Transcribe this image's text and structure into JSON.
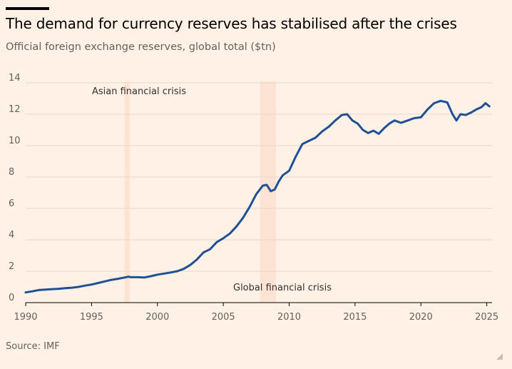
{
  "title": "The demand for currency reserves has stabilised after the crises",
  "subtitle": "Official foreign exchange reserves, global total ($tn)",
  "source": "Source: IMF",
  "colors": {
    "background": "#fff1e5",
    "line": "#1f5096",
    "shade": "#fde3d3",
    "grid": "#e4d8cc"
  },
  "chart_data": {
    "type": "line",
    "title": "The demand for currency reserves has stabilised after the crises",
    "ylabel": "Official foreign exchange reserves, global total ($tn)",
    "xlim": [
      1990,
      2025.4
    ],
    "ylim": [
      0,
      14
    ],
    "x_ticks": [
      1990,
      1995,
      2000,
      2005,
      2010,
      2015,
      2020,
      2025
    ],
    "y_ticks": [
      0,
      2,
      4,
      6,
      8,
      10,
      12,
      14
    ],
    "grid": "horizontal",
    "shaded_periods": [
      {
        "start": 1997.5,
        "end": 1997.9,
        "label": "Asian financial crisis"
      },
      {
        "start": 2007.8,
        "end": 2009.0,
        "label": "Global financial crisis"
      }
    ],
    "series": [
      {
        "x": [
          1990.0,
          1990.5,
          1991.0,
          1991.5,
          1992.0,
          1992.5,
          1993.0,
          1993.5,
          1994.0,
          1994.5,
          1995.0,
          1995.5,
          1996.0,
          1996.5,
          1997.0,
          1997.5,
          1997.8,
          1998.0,
          1998.5,
          1999.0,
          1999.5,
          2000.0,
          2000.5,
          2001.0,
          2001.5,
          2002.0,
          2002.5,
          2003.0,
          2003.5,
          2004.0,
          2004.5,
          2005.0,
          2005.5,
          2006.0,
          2006.5,
          2007.0,
          2007.5,
          2008.0,
          2008.3,
          2008.6,
          2008.9,
          2009.2,
          2009.5,
          2010.0,
          2010.5,
          2011.0,
          2011.5,
          2012.0,
          2012.5,
          2013.0,
          2013.5,
          2014.0,
          2014.4,
          2014.8,
          2015.2,
          2015.6,
          2016.0,
          2016.4,
          2016.8,
          2017.2,
          2017.6,
          2018.0,
          2018.5,
          2019.0,
          2019.5,
          2020.0,
          2020.5,
          2021.0,
          2021.5,
          2022.0,
          2022.4,
          2022.7,
          2023.0,
          2023.4,
          2023.8,
          2024.2,
          2024.6,
          2024.9,
          2025.2
        ],
        "values": [
          0.65,
          0.72,
          0.8,
          0.83,
          0.86,
          0.88,
          0.92,
          0.95,
          1.0,
          1.08,
          1.15,
          1.25,
          1.35,
          1.45,
          1.52,
          1.6,
          1.65,
          1.62,
          1.62,
          1.6,
          1.68,
          1.78,
          1.85,
          1.92,
          2.0,
          2.15,
          2.4,
          2.75,
          3.2,
          3.4,
          3.85,
          4.1,
          4.4,
          4.85,
          5.4,
          6.1,
          6.9,
          7.45,
          7.5,
          7.1,
          7.2,
          7.7,
          8.1,
          8.4,
          9.3,
          10.1,
          10.3,
          10.5,
          10.9,
          11.2,
          11.6,
          11.95,
          12.0,
          11.6,
          11.4,
          11.0,
          10.8,
          10.95,
          10.75,
          11.1,
          11.4,
          11.6,
          11.45,
          11.6,
          11.75,
          11.8,
          12.3,
          12.7,
          12.85,
          12.75,
          12.0,
          11.6,
          12.0,
          11.95,
          12.1,
          12.3,
          12.45,
          12.7,
          12.5
        ]
      }
    ]
  }
}
